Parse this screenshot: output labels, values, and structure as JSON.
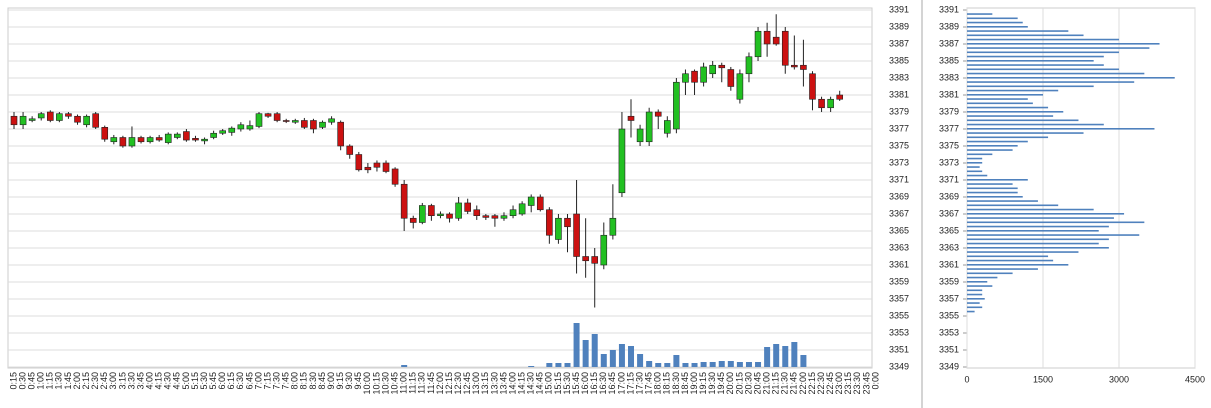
{
  "chart_data": [
    {
      "type": "candlestick",
      "categories": [
        "0:15",
        "0:30",
        "0:45",
        "1:00",
        "1:15",
        "1:30",
        "1:45",
        "2:00",
        "2:15",
        "2:30",
        "2:45",
        "3:00",
        "3:15",
        "3:30",
        "3:45",
        "4:00",
        "4:15",
        "4:30",
        "4:45",
        "5:00",
        "5:15",
        "5:30",
        "5:45",
        "6:00",
        "6:15",
        "6:30",
        "6:45",
        "7:00",
        "7:15",
        "7:30",
        "7:45",
        "8:00",
        "8:15",
        "8:30",
        "8:45",
        "9:00",
        "9:15",
        "9:30",
        "9:45",
        "10:00",
        "10:15",
        "10:30",
        "10:45",
        "11:00",
        "11:15",
        "11:30",
        "11:45",
        "12:00",
        "12:15",
        "12:30",
        "12:45",
        "13:00",
        "13:15",
        "13:30",
        "13:45",
        "14:00",
        "14:15",
        "14:30",
        "14:45",
        "15:00",
        "15:15",
        "15:30",
        "15:45",
        "16:00",
        "16:15",
        "16:30",
        "16:45",
        "17:00",
        "17:15",
        "17:30",
        "17:45",
        "18:00",
        "18:15",
        "18:30",
        "18:45",
        "19:00",
        "19:15",
        "19:30",
        "19:45",
        "20:00",
        "20:15",
        "20:30",
        "20:45",
        "21:00",
        "21:15",
        "21:30",
        "21:45",
        "22:00",
        "22:15",
        "22:30",
        "22:45",
        "23:00",
        "23:15",
        "23:30",
        "23:45",
        "0:00"
      ],
      "open": [
        3378.5,
        3377.5,
        3378,
        3378.3,
        3379,
        3378,
        3378.8,
        3378.5,
        3377.5,
        3378.8,
        3377.2,
        3375.5,
        3376,
        3375,
        3376,
        3375.5,
        3376,
        3375.4,
        3376,
        3376.7,
        3375.9,
        3375.6,
        3376,
        3376.5,
        3376.6,
        3377,
        3377,
        3377.3,
        3378.8,
        3378.8,
        3378,
        3377.8,
        3378,
        3378,
        3377.2,
        3377.8,
        3377.8,
        3375,
        3374,
        3372.5,
        3373,
        3373,
        3372.3,
        3370.5,
        3366.5,
        3366,
        3368,
        3366.8,
        3367,
        3366.5,
        3368.3,
        3367.5,
        3366.8,
        3366.8,
        3366.5,
        3366.8,
        3367,
        3368,
        3369,
        3367.5,
        3364,
        3366.5,
        3367,
        3362,
        3362,
        3361,
        3364.5,
        3369.5,
        3378.5,
        3375.5,
        3375.5,
        3379,
        3376.5,
        3377,
        3382.5,
        3383.8,
        3382.5,
        3383.5,
        3384.5,
        3384,
        3380.5,
        3383.5,
        3385.5,
        3388.5,
        3387.8,
        3388.5,
        3384.5,
        3384.5,
        3383.5,
        3380.5,
        3379.5,
        3381,
        null,
        null,
        null,
        null
      ],
      "high": [
        3379,
        3379,
        3378.5,
        3379,
        3379.2,
        3379,
        3379,
        3378.7,
        3378.7,
        3379,
        3377.4,
        3376.3,
        3376.2,
        3377.3,
        3376.2,
        3376.2,
        3376.3,
        3376.6,
        3376.6,
        3377,
        3376.2,
        3376,
        3376.8,
        3377,
        3377.3,
        3377.8,
        3378,
        3379,
        3378.9,
        3379,
        3378.2,
        3378.2,
        3378.3,
        3378.2,
        3378,
        3378.5,
        3378,
        3375.2,
        3374.3,
        3373,
        3373.3,
        3373.3,
        3372.5,
        3371,
        3366.8,
        3368.3,
        3368.2,
        3367.3,
        3367.2,
        3369,
        3368.8,
        3368,
        3367,
        3367,
        3367.2,
        3368,
        3368.5,
        3369.3,
        3369.3,
        3367.8,
        3367,
        3367,
        3371,
        3366.5,
        3363,
        3366,
        3370.5,
        3379,
        3380.5,
        3377.5,
        3379.5,
        3379.3,
        3378.5,
        3383,
        3384,
        3384,
        3384.8,
        3385,
        3384.8,
        3384.3,
        3384,
        3386,
        3389,
        3389.5,
        3390.5,
        3389,
        3388,
        3387.5,
        3383.8,
        3380.8,
        3380.8,
        3381.5,
        null,
        null,
        null,
        null
      ],
      "low": [
        3377,
        3377,
        3377.8,
        3378,
        3377.8,
        3377.8,
        3378.2,
        3377.5,
        3377.2,
        3377,
        3375.5,
        3375.2,
        3374.8,
        3374.8,
        3375.3,
        3375.3,
        3375.5,
        3375.2,
        3375.8,
        3375.5,
        3375.5,
        3375.2,
        3375.8,
        3376.3,
        3376.2,
        3376.7,
        3376.8,
        3377.1,
        3378.3,
        3377.8,
        3377.7,
        3377.6,
        3377,
        3376.5,
        3377,
        3377.5,
        3374.5,
        3373.5,
        3372,
        3371.8,
        3372,
        3371.8,
        3370.2,
        3365,
        3365.3,
        3365.8,
        3366.2,
        3366.5,
        3366,
        3366.2,
        3367,
        3366.3,
        3366.3,
        3365.5,
        3366.2,
        3366.5,
        3366.8,
        3367.2,
        3367.3,
        3363.5,
        3363.5,
        3362.5,
        3360,
        3359.5,
        3356,
        3360.5,
        3364,
        3369,
        3376,
        3375,
        3375,
        3377,
        3376,
        3376.5,
        3381,
        3381,
        3382,
        3383,
        3382.5,
        3381.5,
        3380,
        3382.5,
        3385,
        3385.5,
        3386.8,
        3383.5,
        3384,
        3382,
        3379.2,
        3379,
        3379,
        3380.3,
        null,
        null,
        null,
        null
      ],
      "close": [
        3377.5,
        3378.5,
        3378.2,
        3378.8,
        3378,
        3378.8,
        3378.5,
        3377.8,
        3378.5,
        3377.2,
        3375.8,
        3376,
        3375,
        3376,
        3375.5,
        3376,
        3375.7,
        3376.4,
        3376.4,
        3375.7,
        3375.7,
        3375.8,
        3376.5,
        3376.8,
        3377.1,
        3377.5,
        3377.4,
        3378.8,
        3378.5,
        3378,
        3377.9,
        3378,
        3377.2,
        3377,
        3377.8,
        3378.2,
        3375,
        3374,
        3372.2,
        3372.2,
        3372.5,
        3372,
        3370.5,
        3366.5,
        3366,
        3368,
        3366.8,
        3367,
        3366.5,
        3368.3,
        3367.3,
        3366.8,
        3366.6,
        3366.5,
        3366.8,
        3367.5,
        3368.2,
        3369,
        3367.5,
        3364.5,
        3366.5,
        3365.5,
        3362,
        3361.5,
        3361.2,
        3364.5,
        3366.5,
        3377,
        3378,
        3377,
        3379,
        3378.5,
        3378,
        3382.5,
        3383.5,
        3382.5,
        3384.3,
        3384.5,
        3384.2,
        3382,
        3383.5,
        3385.5,
        3388.5,
        3387,
        3387,
        3384.5,
        3384.3,
        3384,
        3380.5,
        3379.5,
        3380.5,
        3380.5,
        null,
        null,
        null,
        null
      ],
      "volume": [
        0,
        0,
        0,
        0,
        0,
        0,
        0,
        0,
        0,
        0,
        0,
        0,
        0,
        0,
        0,
        0,
        0,
        0,
        0,
        0,
        0,
        0,
        0,
        0,
        0,
        0,
        0,
        0,
        0,
        0,
        0,
        0,
        0,
        0,
        0,
        0,
        0,
        0,
        0,
        0,
        0,
        0,
        0,
        2,
        0,
        0,
        0,
        0,
        0,
        0,
        0,
        0,
        0,
        0,
        0,
        0,
        0,
        1,
        0,
        4,
        4,
        4,
        44,
        27,
        33,
        13,
        17,
        23,
        21,
        13,
        6,
        4,
        4,
        12,
        4,
        4,
        5,
        5,
        6,
        6,
        5,
        5,
        5,
        20,
        23,
        21,
        25,
        12,
        0,
        0,
        0,
        0,
        null,
        null,
        null,
        null
      ],
      "up_color": "#22c022",
      "down_color": "#cc1111",
      "volume_color": "#4f81bd",
      "ylim": [
        3349,
        3391
      ],
      "yticks": [
        3349,
        3351,
        3353,
        3355,
        3357,
        3359,
        3361,
        3363,
        3365,
        3367,
        3369,
        3371,
        3373,
        3375,
        3377,
        3379,
        3381,
        3383,
        3385,
        3387,
        3389,
        3391
      ],
      "grid": true
    },
    {
      "type": "barh",
      "color": "#4f81bd",
      "y": [
        3390.5,
        3390,
        3389.5,
        3389,
        3388.5,
        3388,
        3387.5,
        3387,
        3386.5,
        3386,
        3385.5,
        3385,
        3384.5,
        3384,
        3383.5,
        3383,
        3382.5,
        3382,
        3381.5,
        3381,
        3380.5,
        3380,
        3379.5,
        3379,
        3378.5,
        3378,
        3377.5,
        3377,
        3376.5,
        3376,
        3375.5,
        3375,
        3374.5,
        3374,
        3373.5,
        3373,
        3372.5,
        3372,
        3371.5,
        3371,
        3370.5,
        3370,
        3369.5,
        3369,
        3368.5,
        3368,
        3367.5,
        3367,
        3366.5,
        3366,
        3365.5,
        3365,
        3364.5,
        3364,
        3363.5,
        3363,
        3362.5,
        3362,
        3361.5,
        3361,
        3360.5,
        3360,
        3359.5,
        3359,
        3358.5,
        3358,
        3357.5,
        3357,
        3356.5,
        3356,
        3355.5
      ],
      "values": [
        500,
        1000,
        1100,
        1200,
        2000,
        2300,
        3000,
        3800,
        3600,
        3000,
        2700,
        2500,
        2700,
        3000,
        3500,
        4100,
        3300,
        2500,
        1800,
        1500,
        1200,
        1300,
        1600,
        1900,
        1700,
        2200,
        2700,
        3700,
        2300,
        1600,
        1200,
        1000,
        900,
        500,
        300,
        300,
        250,
        300,
        400,
        1200,
        900,
        1000,
        1000,
        1100,
        1400,
        1800,
        2500,
        3100,
        2900,
        3500,
        2800,
        2600,
        3400,
        2800,
        2600,
        2800,
        2200,
        1600,
        1700,
        2000,
        1400,
        900,
        600,
        400,
        500,
        300,
        300,
        350,
        250,
        300,
        150
      ],
      "xlim": [
        0,
        4500
      ],
      "xticks": [
        0,
        1500,
        3000,
        4500
      ],
      "ylim": [
        3349,
        3391
      ],
      "yticks": [
        3349,
        3351,
        3353,
        3355,
        3357,
        3359,
        3361,
        3363,
        3365,
        3367,
        3369,
        3371,
        3373,
        3375,
        3377,
        3379,
        3381,
        3383,
        3385,
        3387,
        3389,
        3391
      ],
      "grid": true
    }
  ]
}
